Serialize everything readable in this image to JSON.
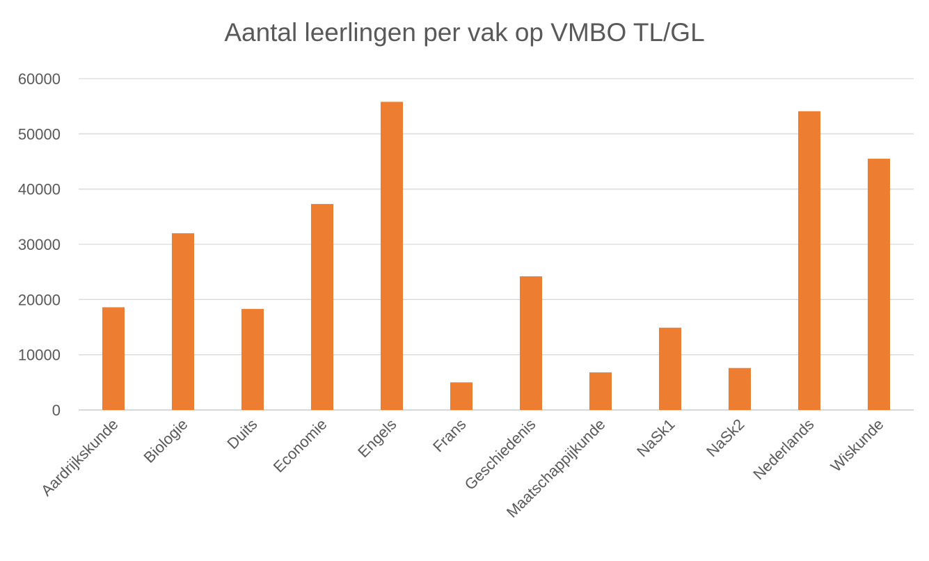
{
  "chart_data": {
    "type": "bar",
    "title": "Aantal leerlingen per vak op VMBO TL/GL",
    "xlabel": "",
    "ylabel": "",
    "categories": [
      "Aardrijkskunde",
      "Biologie",
      "Duits",
      "Economie",
      "Engels",
      "Frans",
      "Geschiedenis",
      "Maatschappijkunde",
      "NaSk1",
      "NaSk2",
      "Nederlands",
      "Wiskunde"
    ],
    "values": [
      18600,
      32000,
      18300,
      37300,
      55800,
      5000,
      24200,
      6800,
      14900,
      7600,
      54100,
      45500
    ],
    "ylim": [
      0,
      60000
    ],
    "yticks": [
      "0",
      "10000",
      "20000",
      "30000",
      "40000",
      "50000",
      "60000"
    ],
    "bar_color": "#ED7D31",
    "grid": true,
    "legend": "none"
  }
}
